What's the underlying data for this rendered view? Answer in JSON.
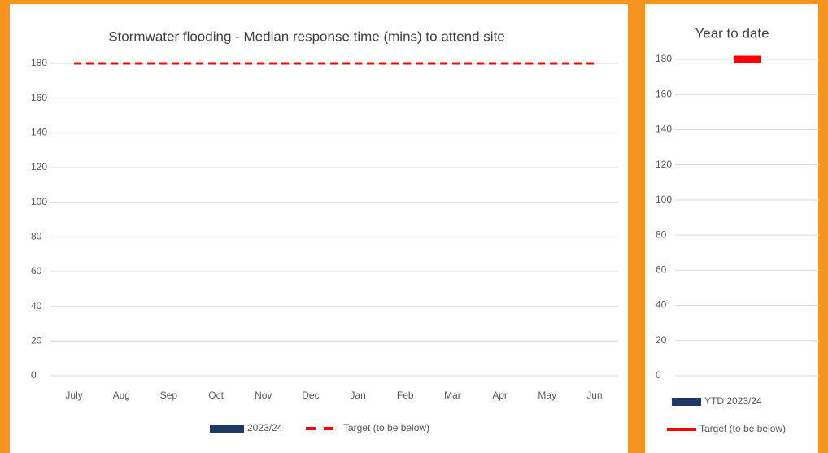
{
  "chart_data": [
    {
      "type": "bar",
      "title": "Stormwater flooding - Median response time (mins) to attend site",
      "categories": [
        "July",
        "Aug",
        "Sep",
        "Oct",
        "Nov",
        "Dec",
        "Jan",
        "Feb",
        "Mar",
        "Apr",
        "May",
        "Jun"
      ],
      "series": [
        {
          "name": "2023/24",
          "type": "bar",
          "color": "#1f3864",
          "values": [
            null,
            null,
            null,
            null,
            null,
            null,
            null,
            null,
            null,
            null,
            null,
            null
          ]
        },
        {
          "name": "Target (to be below)",
          "type": "line",
          "dashed": true,
          "color": "#ff0000",
          "values": [
            180,
            180,
            180,
            180,
            180,
            180,
            180,
            180,
            180,
            180,
            180,
            180
          ]
        }
      ],
      "ylim": [
        0,
        180
      ],
      "yticks": [
        0,
        20,
        40,
        60,
        80,
        100,
        120,
        140,
        160,
        180
      ],
      "grid": true
    },
    {
      "type": "bar",
      "title": "Year to date",
      "categories": [
        null
      ],
      "series": [
        {
          "name": "YTD 2023/24",
          "type": "bar",
          "color": "#1f3864",
          "values": [
            null
          ]
        },
        {
          "name": "Target (to be below)",
          "type": "marker",
          "color": "#ff0000",
          "values": [
            180
          ]
        }
      ],
      "ylim": [
        0,
        180
      ],
      "yticks": [
        0,
        20,
        40,
        60,
        80,
        100,
        120,
        140,
        160,
        180
      ],
      "grid": true
    }
  ]
}
